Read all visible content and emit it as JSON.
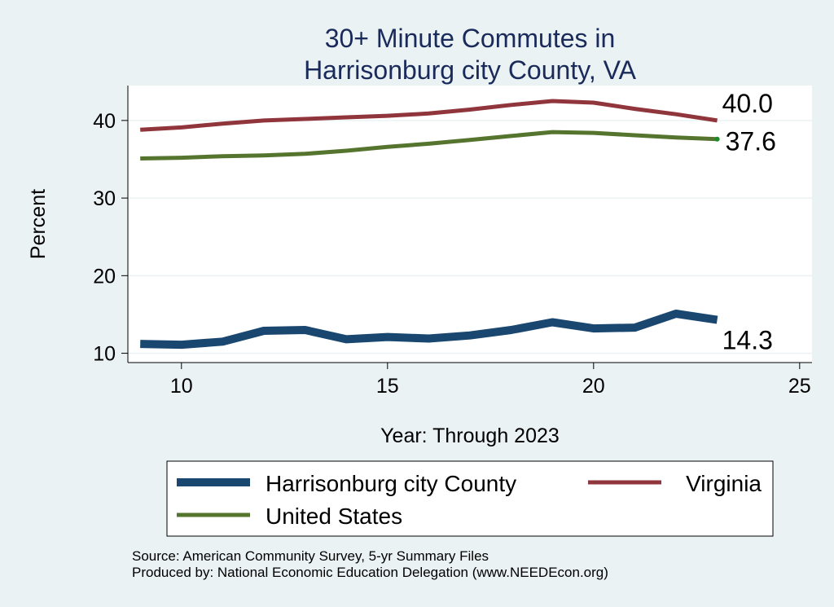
{
  "chart_data": {
    "type": "line",
    "title": [
      "30+ Minute Commutes in",
      "Harrisonburg city County, VA"
    ],
    "xlabel": "Year: Through 2023",
    "ylabel": "Percent",
    "xlim": [
      8.7,
      25.3
    ],
    "ylim": [
      8.8,
      44.5
    ],
    "xticks": [
      10,
      15,
      20,
      25
    ],
    "yticks": [
      10,
      20,
      30,
      40
    ],
    "grid": true,
    "legend_position": "bottom",
    "series": [
      {
        "name": "Harrisonburg city County",
        "color": "#1a476f",
        "x": [
          9,
          10,
          11,
          12,
          13,
          14,
          15,
          16,
          17,
          18,
          19,
          20,
          21,
          22,
          23
        ],
        "y": [
          11.2,
          11.1,
          11.5,
          12.9,
          13.0,
          11.8,
          12.1,
          11.9,
          12.3,
          13.0,
          14.0,
          13.2,
          13.3,
          15.1,
          14.3
        ],
        "end_label": "14.3"
      },
      {
        "name": "Virginia",
        "color": "#90353b",
        "x": [
          9,
          10,
          11,
          12,
          13,
          14,
          15,
          16,
          17,
          18,
          19,
          20,
          21,
          22,
          23
        ],
        "y": [
          38.8,
          39.1,
          39.6,
          40.0,
          40.2,
          40.4,
          40.6,
          40.9,
          41.4,
          42.0,
          42.5,
          42.3,
          41.5,
          40.8,
          40.0
        ],
        "end_label": "40.0"
      },
      {
        "name": "United States",
        "color": "#55752f",
        "x": [
          9,
          10,
          11,
          12,
          13,
          14,
          15,
          16,
          17,
          18,
          19,
          20,
          21,
          22,
          23
        ],
        "y": [
          35.1,
          35.2,
          35.4,
          35.5,
          35.7,
          36.1,
          36.6,
          37.0,
          37.5,
          38.0,
          38.5,
          38.4,
          38.1,
          37.8,
          37.6
        ],
        "end_label": "37.6"
      }
    ]
  },
  "legend": [
    "Harrisonburg city County",
    "Virginia",
    "United States"
  ],
  "footer": {
    "source": "Source: American Community Survey, 5-yr Summary Files",
    "produced": "Produced by: National Economic Education Delegation (www.NEEDEcon.org)"
  }
}
